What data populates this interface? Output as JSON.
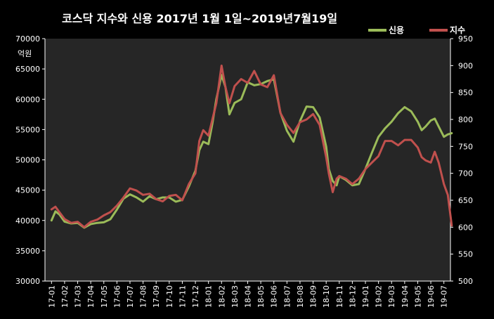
{
  "title": "코스닥 지수와 신용 2017년 1월 1일~2019년7월19일",
  "unit_label": "억원",
  "colors": {
    "background": "#000000",
    "plot_background": "#262626",
    "credit": "#9bbb59",
    "index": "#c0504d",
    "text": "#ffffff"
  },
  "chart_data": {
    "type": "line",
    "title": "코스닥 지수와 신용 2017년 1월 1일~2019년7월19일",
    "xlabel": "",
    "ylabel": "억원",
    "ylim": [
      30000,
      70000
    ],
    "y2lim": [
      500,
      950
    ],
    "grid": false,
    "legend": "top-right",
    "left_ticks": [
      "30000",
      "35000",
      "40000",
      "45000",
      "50000",
      "55000",
      "60000",
      "65000",
      "70000"
    ],
    "right_ticks": [
      "500",
      "550",
      "600",
      "650",
      "700",
      "750",
      "800",
      "850",
      "900",
      "950"
    ],
    "x_ticks": [
      "17-01",
      "17-02",
      "17-03",
      "17-04",
      "17-05",
      "17-06",
      "17-07",
      "17-08",
      "17-09",
      "17-10",
      "17-11",
      "17-12",
      "18-01",
      "18-02",
      "18-03",
      "18-04",
      "18-05",
      "18-06",
      "18-07",
      "18-08",
      "18-09",
      "18-10",
      "18-11",
      "18-12",
      "19-01",
      "19-02",
      "19-03",
      "19-04",
      "19-05",
      "19-06",
      "19-07"
    ],
    "series": [
      {
        "name": "신용",
        "axis": "left",
        "color": "#9bbb59",
        "x": [
          0,
          0.3,
          0.6,
          1,
          1.5,
          2,
          2.5,
          3,
          3.5,
          4,
          4.5,
          5,
          5.5,
          6,
          6.5,
          7,
          7.5,
          8,
          8.5,
          9,
          9.5,
          10,
          10.5,
          11,
          11.3,
          11.6,
          12,
          12.3,
          12.6,
          13,
          13.3,
          13.6,
          14,
          14.5,
          15,
          15.5,
          16,
          16.5,
          17,
          17.5,
          18,
          18.5,
          19,
          19.5,
          20,
          20.5,
          21,
          21.2,
          21.5,
          21.8,
          22,
          22.5,
          23,
          23.5,
          24,
          24.5,
          25,
          25.5,
          26,
          26.5,
          27,
          27.5,
          28,
          28.3,
          28.6,
          29,
          29.3,
          29.6,
          30,
          30.3,
          30.6
        ],
        "values": [
          40000,
          41500,
          41000,
          39800,
          39500,
          39600,
          38800,
          39400,
          39600,
          39700,
          40200,
          41800,
          43600,
          44300,
          43800,
          43100,
          44000,
          43500,
          43800,
          43800,
          43100,
          43400,
          45600,
          48200,
          51600,
          53000,
          52600,
          56000,
          60000,
          64000,
          62000,
          57500,
          59400,
          60000,
          62800,
          62300,
          62500,
          63000,
          63300,
          57800,
          54800,
          53000,
          56400,
          58800,
          58700,
          57000,
          52200,
          48500,
          46500,
          45800,
          47300,
          46700,
          45800,
          46000,
          48500,
          51200,
          53800,
          55200,
          56300,
          57700,
          58700,
          58000,
          56300,
          54900,
          55500,
          56500,
          56800,
          55500,
          53800,
          54200,
          54400
        ]
      },
      {
        "name": "지수",
        "axis": "right",
        "color": "#c0504d",
        "x": [
          0,
          0.3,
          0.6,
          1,
          1.5,
          2,
          2.5,
          3,
          3.5,
          4,
          4.5,
          5,
          5.5,
          6,
          6.5,
          7,
          7.5,
          8,
          8.5,
          9,
          9.5,
          10,
          10.5,
          11,
          11.3,
          11.6,
          12,
          12.3,
          12.6,
          13,
          13.3,
          13.6,
          14,
          14.5,
          15,
          15.5,
          16,
          16.5,
          17,
          17.5,
          18,
          18.5,
          19,
          19.5,
          20,
          20.5,
          21,
          21.2,
          21.5,
          21.8,
          22,
          22.5,
          23,
          23.5,
          24,
          24.5,
          25,
          25.5,
          26,
          26.5,
          27,
          27.5,
          28,
          28.3,
          28.6,
          29,
          29.3,
          29.6,
          30,
          30.3,
          30.6
        ],
        "values": [
          633,
          638,
          628,
          615,
          608,
          610,
          600,
          610,
          614,
          622,
          628,
          640,
          655,
          672,
          668,
          660,
          662,
          652,
          648,
          658,
          660,
          650,
          680,
          700,
          760,
          780,
          770,
          800,
          830,
          900,
          860,
          830,
          862,
          875,
          868,
          890,
          865,
          860,
          882,
          812,
          790,
          775,
          795,
          800,
          810,
          790,
          730,
          700,
          665,
          690,
          695,
          690,
          680,
          690,
          708,
          720,
          732,
          760,
          760,
          752,
          762,
          762,
          748,
          730,
          724,
          720,
          740,
          720,
          680,
          660,
          603
        ]
      }
    ]
  }
}
